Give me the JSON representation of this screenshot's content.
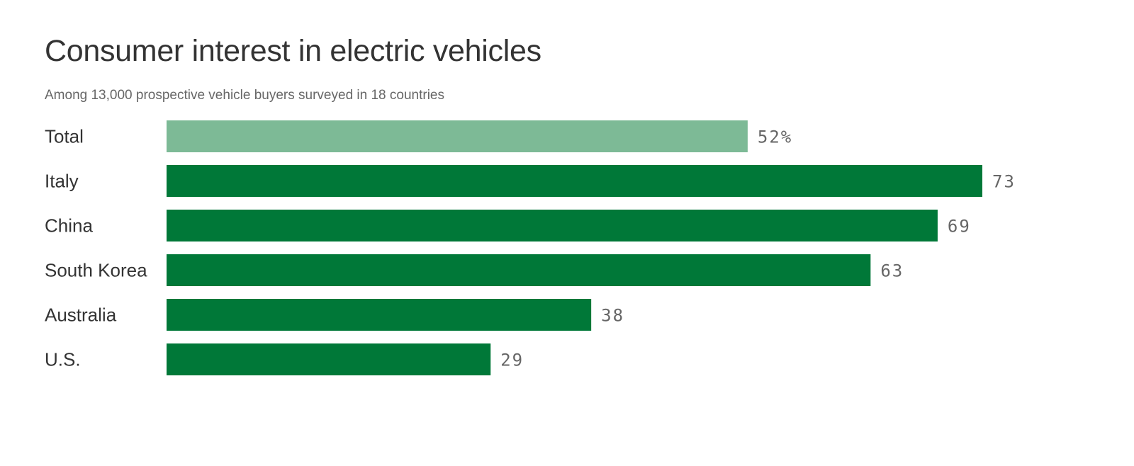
{
  "chart_data": {
    "type": "bar",
    "orientation": "horizontal",
    "title": "Consumer interest in electric vehicles",
    "subtitle": "Among 13,000 prospective vehicle buyers surveyed in 18 countries",
    "categories": [
      "Total",
      "Italy",
      "China",
      "South Korea",
      "Australia",
      "U.S."
    ],
    "values": [
      52,
      73,
      69,
      63,
      38,
      29
    ],
    "value_labels": [
      "52%",
      "73",
      "69",
      "63",
      "38",
      "29"
    ],
    "colors": [
      "#7dba96",
      "#007838",
      "#007838",
      "#007838",
      "#007838",
      "#007838"
    ],
    "xlim": [
      0,
      73
    ],
    "grid": false,
    "legend": "none"
  }
}
